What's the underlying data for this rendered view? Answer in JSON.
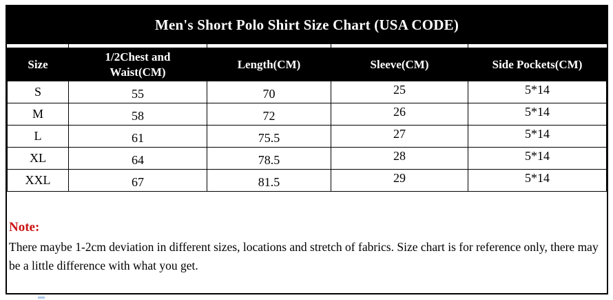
{
  "title": "Men's Short Polo Shirt Size Chart (USA CODE)",
  "table": {
    "columns": [
      "Size",
      "1/2Chest and Waist(CM)",
      "Length(CM)",
      "Sleeve(CM)",
      "Side Pockets(CM)"
    ],
    "rows": [
      {
        "size": "S",
        "chest_waist": "55",
        "length": "70",
        "sleeve": "25",
        "side_pockets": "5*14"
      },
      {
        "size": "M",
        "chest_waist": "58",
        "length": "72",
        "sleeve": "26",
        "side_pockets": "5*14"
      },
      {
        "size": "L",
        "chest_waist": "61",
        "length": "75.5",
        "sleeve": "27",
        "side_pockets": "5*14"
      },
      {
        "size": "XL",
        "chest_waist": "64",
        "length": "78.5",
        "sleeve": "28",
        "side_pockets": "5*14"
      },
      {
        "size": "XXL",
        "chest_waist": "67",
        "length": "81.5",
        "sleeve": "29",
        "side_pockets": "5*14"
      }
    ]
  },
  "note": {
    "label": "Note:",
    "text": "There maybe 1-2cm deviation in different sizes, locations and stretch of fabrics. Size chart is for reference only, there may be a little difference with what you get."
  },
  "colors": {
    "header_bg": "#000000",
    "header_text": "#ffffff",
    "body_text": "#000000",
    "note_label_red": "#cc1111",
    "border": "#000000",
    "fragment_blue": "#a9c7e8"
  }
}
